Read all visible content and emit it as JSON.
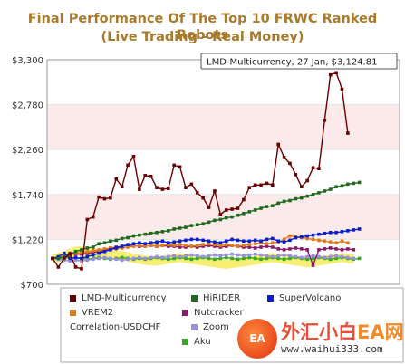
{
  "title_line1": "Final Performance Of The Top 10 FRWC Ranked Robots",
  "title_line2": "(Live Trading - Real Money)",
  "tooltip": "LMD-Multicurrency, 27 Jan, $3,124.81",
  "watermark": {
    "main": "外汇小白",
    "ea": "EA网",
    "url": "www.waihui333.com",
    "logo_text": "EA"
  },
  "chart_data": {
    "type": "line",
    "yaxis": {
      "min": 700,
      "max": 3300,
      "ticks": [
        700,
        1220,
        1740,
        2260,
        2780,
        3300
      ],
      "tick_labels": [
        "$700",
        "$1,220",
        "$1,740",
        "$2,260",
        "$2,780",
        "$3,300"
      ]
    },
    "bands": [
      {
        "from": 1220,
        "to": 1740,
        "color": "#fbeaea"
      },
      {
        "from": 2260,
        "to": 2780,
        "color": "#fbeaea"
      }
    ],
    "n_points": 60,
    "series": [
      {
        "name": "LMD-Multicurrency",
        "color": "#6b0000",
        "marker": "square",
        "values": [
          1000,
          900,
          1000,
          1050,
          900,
          880,
          1450,
          1480,
          1710,
          1690,
          1700,
          1920,
          1830,
          2080,
          2180,
          1800,
          1960,
          1950,
          1820,
          1800,
          1810,
          2080,
          2060,
          1820,
          1860,
          1760,
          1700,
          1590,
          1780,
          1510,
          1560,
          1570,
          1580,
          1680,
          1820,
          1850,
          1850,
          1870,
          1850,
          2320,
          2170,
          2100,
          1970,
          1830,
          1900,
          2050,
          2040,
          2600,
          3124.81,
          3150,
          2960,
          2450
        ]
      },
      {
        "name": "HiRIDER",
        "color": "#1e6b1e",
        "marker": "square",
        "values": [
          1000,
          1000,
          1020,
          1050,
          1080,
          1100,
          1120,
          1130,
          1170,
          1180,
          1200,
          1210,
          1230,
          1240,
          1260,
          1270,
          1280,
          1290,
          1300,
          1310,
          1320,
          1340,
          1350,
          1360,
          1380,
          1390,
          1400,
          1420,
          1440,
          1450,
          1470,
          1480,
          1500,
          1520,
          1540,
          1560,
          1580,
          1600,
          1610,
          1640,
          1660,
          1670,
          1690,
          1700,
          1720,
          1740,
          1760,
          1780,
          1800,
          1830,
          1840,
          1860,
          1870,
          1880
        ]
      },
      {
        "name": "SuperVolcano",
        "color": "#0b1ecf",
        "marker": "square",
        "values": [
          1000,
          1020,
          1060,
          1000,
          1010,
          1000,
          1020,
          1040,
          1060,
          1080,
          1100,
          1120,
          1140,
          1160,
          1170,
          1180,
          1170,
          1180,
          1190,
          1200,
          1180,
          1190,
          1200,
          1210,
          1220,
          1220,
          1210,
          1200,
          1190,
          1180,
          1200,
          1220,
          1210,
          1200,
          1200,
          1210,
          1200,
          1220,
          1230,
          1200,
          1190,
          1210,
          1240,
          1250,
          1260,
          1270,
          1280,
          1290,
          1300,
          1300,
          1310,
          1320,
          1330,
          1340
        ]
      },
      {
        "name": "VREM2",
        "color": "#e07a1a",
        "marker": "circle",
        "values": [
          1000,
          1010,
          1030,
          1040,
          1060,
          1070,
          1080,
          1090,
          1100,
          1110,
          1120,
          1110,
          1120,
          1130,
          1140,
          1150,
          1140,
          1150,
          1140,
          1150,
          1160,
          1150,
          1160,
          1150,
          1140,
          1150,
          1160,
          1170,
          1160,
          1150,
          1160,
          1150,
          1140,
          1150,
          1160,
          1170,
          1180,
          1170,
          1180,
          1190,
          1220,
          1260,
          1250,
          1240,
          1230,
          1220,
          1210,
          1200,
          1190,
          1180,
          1200,
          1180
        ]
      },
      {
        "name": "Nutcracker",
        "color": "#8c1a6b",
        "marker": "square",
        "values": [
          1000,
          1010,
          1030,
          1060,
          1050,
          1050,
          1060,
          1070,
          1080,
          1090,
          1120,
          1130,
          1140,
          1150,
          1150,
          1140,
          1140,
          1150,
          1140,
          1150,
          1140,
          1140,
          1130,
          1130,
          1140,
          1130,
          1140,
          1150,
          1140,
          1130,
          1140,
          1150,
          1140,
          1130,
          1130,
          1120,
          1130,
          1140,
          1130,
          1110,
          1100,
          1110,
          1120,
          1110,
          1100,
          920,
          1100,
          1110,
          1120,
          1110,
          1100,
          1110,
          1100
        ]
      },
      {
        "name": "Correlation-USDCHF",
        "color": "#f0e000",
        "marker": "none",
        "values": [
          1000,
          1010,
          1030,
          1060,
          1080,
          1090,
          1080,
          1070,
          1050,
          1060,
          1050,
          1040,
          1030,
          1020,
          1000,
          990,
          980,
          970,
          970,
          980,
          990,
          1000,
          1010,
          1000,
          990,
          980,
          970,
          960,
          950,
          940,
          930,
          940,
          950,
          960,
          970,
          980,
          990,
          1000,
          1010,
          1000,
          990,
          980,
          970,
          960,
          950,
          960,
          970,
          980,
          990,
          1000,
          1010,
          1000,
          990
        ]
      },
      {
        "name": "Zoom",
        "color": "#9a8ee0",
        "marker": "square",
        "values": [
          1000,
          990,
          980,
          970,
          980,
          970,
          980,
          990,
          1000,
          1010,
          1000,
          990,
          980,
          990,
          1000,
          1010,
          1000,
          1010,
          1020,
          1010,
          1020,
          1030,
          1020,
          1030,
          1040,
          1030,
          1020,
          1030,
          1040,
          1030,
          1040,
          1050,
          1040,
          1030,
          1040,
          1050,
          1040,
          1030,
          1020,
          1030,
          1040,
          1030,
          1020,
          1010,
          1020,
          1030,
          1020,
          1010,
          1020,
          1030,
          1020,
          1010,
          1000
        ]
      },
      {
        "name": "Aku",
        "color": "#33aa22",
        "marker": "square",
        "values": [
          1000,
          990,
          1000,
          1010,
          1000,
          1000,
          990,
          1000,
          1010,
          1000,
          990,
          1000,
          1010,
          1000,
          990,
          1000,
          990,
          1000,
          1010,
          1000,
          990,
          1000,
          1010,
          1000,
          990,
          1000,
          1010,
          1000,
          990,
          1000,
          1010,
          1000,
          990,
          1000,
          1010,
          1000,
          990,
          1000,
          1010,
          1000,
          990,
          1000,
          1010,
          1000,
          990,
          1000,
          1010,
          1000,
          990,
          1000,
          1010,
          1000,
          990,
          1000
        ]
      }
    ]
  }
}
